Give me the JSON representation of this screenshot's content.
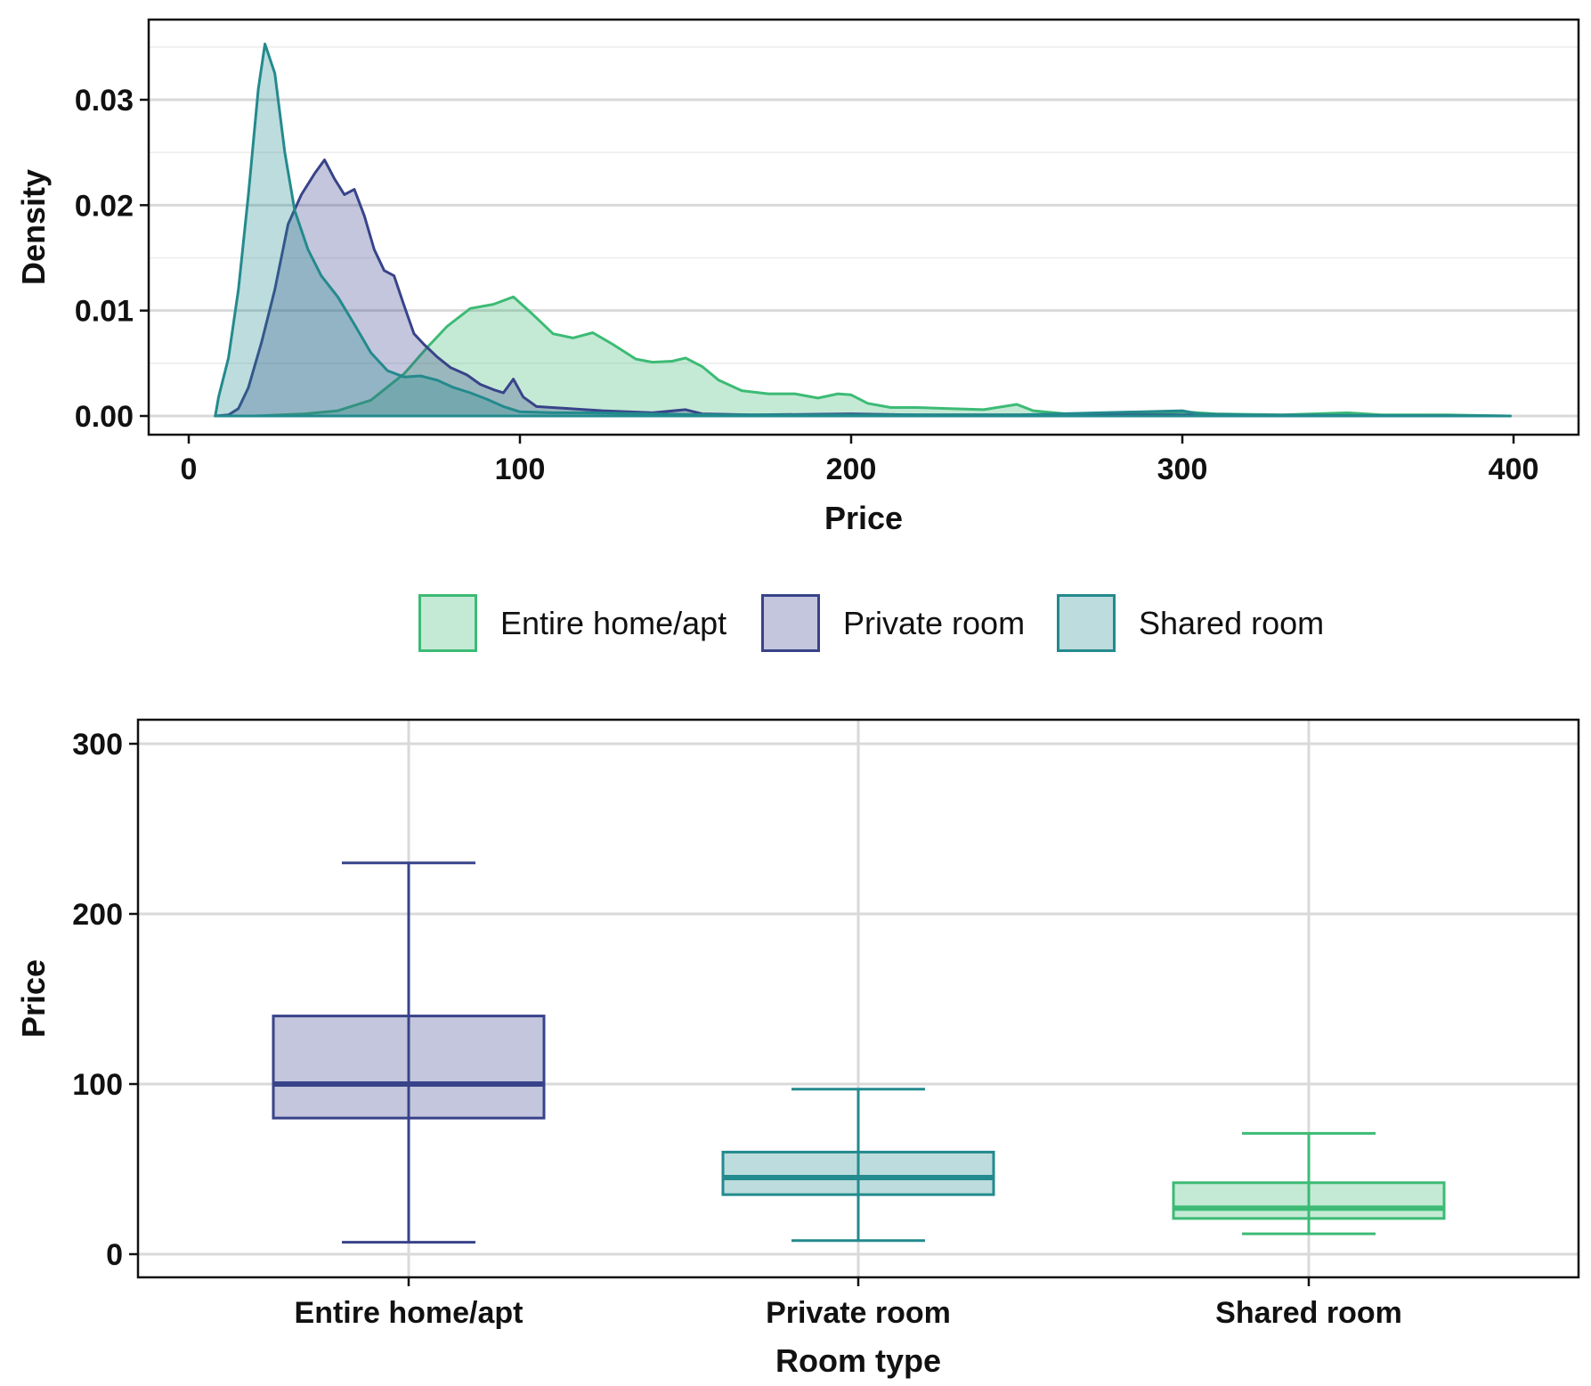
{
  "colors": {
    "entire": "#3cbb75",
    "private": "#39438a",
    "shared": "#238a8d",
    "grid_major": "#d9d9d9",
    "grid_minor": "#ececec",
    "frame": "#111111"
  },
  "chart_data": [
    {
      "type": "area",
      "subtype": "density",
      "title": "",
      "xlabel": "Price",
      "ylabel": "Density",
      "xlim": [
        0,
        400
      ],
      "ylim": [
        0,
        0.035
      ],
      "x_ticks": [
        0,
        100,
        200,
        300,
        400
      ],
      "x_tick_labels": [
        "0",
        "100",
        "200",
        "300",
        "400"
      ],
      "y_ticks": [
        0,
        0.01,
        0.02,
        0.03
      ],
      "y_tick_labels": [
        "0.00",
        "0.01",
        "0.02",
        "0.03"
      ],
      "grid": true,
      "legend_position": "bottom",
      "series": [
        {
          "name": "Entire home/apt",
          "color_key": "entire",
          "points": [
            [
              8,
              0
            ],
            [
              20,
              0
            ],
            [
              35,
              0.0002
            ],
            [
              45,
              0.0005
            ],
            [
              55,
              0.0015
            ],
            [
              65,
              0.004
            ],
            [
              72,
              0.0065
            ],
            [
              78,
              0.0085
            ],
            [
              85,
              0.0102
            ],
            [
              92,
              0.0106
            ],
            [
              98,
              0.0113
            ],
            [
              104,
              0.0096
            ],
            [
              110,
              0.0078
            ],
            [
              116,
              0.0074
            ],
            [
              122,
              0.0079
            ],
            [
              128,
              0.0068
            ],
            [
              135,
              0.0054
            ],
            [
              140,
              0.0051
            ],
            [
              146,
              0.0052
            ],
            [
              150,
              0.0055
            ],
            [
              155,
              0.0047
            ],
            [
              160,
              0.0034
            ],
            [
              167,
              0.0024
            ],
            [
              175,
              0.0021
            ],
            [
              183,
              0.0021
            ],
            [
              190,
              0.0017
            ],
            [
              196,
              0.0021
            ],
            [
              200,
              0.002
            ],
            [
              205,
              0.0012
            ],
            [
              212,
              0.0008
            ],
            [
              220,
              0.0008
            ],
            [
              230,
              0.0007
            ],
            [
              240,
              0.0006
            ],
            [
              250,
              0.0011
            ],
            [
              255,
              0.0005
            ],
            [
              265,
              0.0002
            ],
            [
              280,
              0.0002
            ],
            [
              295,
              0.0003
            ],
            [
              300,
              0.0004
            ],
            [
              310,
              0.0002
            ],
            [
              330,
              0.0001
            ],
            [
              350,
              0.0003
            ],
            [
              360,
              0.0001
            ],
            [
              380,
              0.0001
            ],
            [
              399,
              0
            ]
          ]
        },
        {
          "name": "Private room",
          "color_key": "private",
          "points": [
            [
              8,
              0
            ],
            [
              12,
              0.0001
            ],
            [
              15,
              0.0007
            ],
            [
              18,
              0.0027
            ],
            [
              22,
              0.007
            ],
            [
              26,
              0.012
            ],
            [
              30,
              0.0182
            ],
            [
              34,
              0.021
            ],
            [
              38,
              0.023
            ],
            [
              41,
              0.0243
            ],
            [
              44,
              0.0225
            ],
            [
              47,
              0.021
            ],
            [
              50,
              0.0215
            ],
            [
              53,
              0.019
            ],
            [
              56,
              0.0158
            ],
            [
              59,
              0.0138
            ],
            [
              62,
              0.0133
            ],
            [
              65,
              0.0105
            ],
            [
              68,
              0.0078
            ],
            [
              71,
              0.0068
            ],
            [
              75,
              0.0056
            ],
            [
              79,
              0.0046
            ],
            [
              84,
              0.0039
            ],
            [
              88,
              0.003
            ],
            [
              92,
              0.0025
            ],
            [
              95,
              0.0022
            ],
            [
              98,
              0.0035
            ],
            [
              101,
              0.0018
            ],
            [
              105,
              0.0009
            ],
            [
              115,
              0.0007
            ],
            [
              125,
              0.0005
            ],
            [
              140,
              0.0003
            ],
            [
              150,
              0.0006
            ],
            [
              155,
              0.0002
            ],
            [
              170,
              0.0001
            ],
            [
              200,
              0.0002
            ],
            [
              220,
              0.0001
            ],
            [
              300,
              0.0001
            ],
            [
              399,
              0
            ]
          ]
        },
        {
          "name": "Shared room",
          "color_key": "shared",
          "points": [
            [
              8,
              0
            ],
            [
              9,
              0.0018
            ],
            [
              12,
              0.0055
            ],
            [
              15,
              0.012
            ],
            [
              18,
              0.021
            ],
            [
              21,
              0.031
            ],
            [
              23,
              0.0353
            ],
            [
              26,
              0.0325
            ],
            [
              29,
              0.025
            ],
            [
              32,
              0.0195
            ],
            [
              36,
              0.0158
            ],
            [
              40,
              0.0133
            ],
            [
              45,
              0.0113
            ],
            [
              50,
              0.0087
            ],
            [
              55,
              0.006
            ],
            [
              60,
              0.0043
            ],
            [
              65,
              0.0037
            ],
            [
              70,
              0.0038
            ],
            [
              75,
              0.0034
            ],
            [
              80,
              0.0027
            ],
            [
              85,
              0.0022
            ],
            [
              90,
              0.0016
            ],
            [
              95,
              0.0009
            ],
            [
              100,
              0.0004
            ],
            [
              110,
              0.0003
            ],
            [
              120,
              0.0003
            ],
            [
              140,
              0.0002
            ],
            [
              160,
              0.0001
            ],
            [
              200,
              0.0001
            ],
            [
              250,
              0.0001
            ],
            [
              300,
              0.0005
            ],
            [
              305,
              0.0002
            ],
            [
              320,
              0.0001
            ],
            [
              399,
              0
            ]
          ]
        }
      ]
    },
    {
      "type": "box",
      "title": "",
      "xlabel": "Room type",
      "ylabel": "Price",
      "categories": [
        "Entire home/apt",
        "Private room",
        "Shared room"
      ],
      "ylim": [
        -13,
        315
      ],
      "y_ticks": [
        0,
        100,
        200,
        300
      ],
      "y_tick_labels": [
        "0",
        "100",
        "200",
        "300"
      ],
      "grid": true,
      "boxes": [
        {
          "category": "Entire home/apt",
          "color_key": "private",
          "whisker_low": 7,
          "q1": 80,
          "median": 100,
          "q3": 140,
          "whisker_high": 230
        },
        {
          "category": "Private room",
          "color_key": "shared",
          "whisker_low": 8,
          "q1": 35,
          "median": 45,
          "q3": 60,
          "whisker_high": 97
        },
        {
          "category": "Shared room",
          "color_key": "entire",
          "whisker_low": 12,
          "q1": 21,
          "median": 27,
          "q3": 42,
          "whisker_high": 71
        }
      ]
    }
  ],
  "legend": {
    "items": [
      {
        "label": "Entire home/apt",
        "color_key": "entire"
      },
      {
        "label": "Private room",
        "color_key": "private"
      },
      {
        "label": "Shared room",
        "color_key": "shared"
      }
    ]
  }
}
